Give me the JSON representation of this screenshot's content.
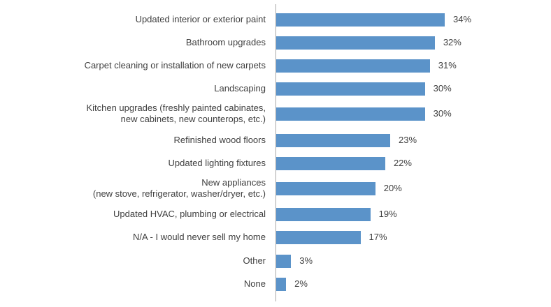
{
  "chart_data": {
    "type": "bar",
    "orientation": "horizontal",
    "categories": [
      "Updated interior or exterior paint",
      "Bathroom upgrades",
      "Carpet cleaning or installation of new carpets",
      "Landscaping",
      "Kitchen upgrades (freshly painted cabinates,\nnew cabinets, new counterops, etc.)",
      "Refinished wood floors",
      "Updated lighting fixtures",
      "New appliances\n(new stove, refrigerator, washer/dryer, etc.)",
      "Updated HVAC, plumbing or electrical",
      "N/A - I would never sell my home",
      "Other",
      "None"
    ],
    "values": [
      34,
      32,
      31,
      30,
      30,
      23,
      22,
      20,
      19,
      17,
      3,
      2
    ],
    "value_labels": [
      "34%",
      "32%",
      "31%",
      "30%",
      "30%",
      "23%",
      "22%",
      "20%",
      "19%",
      "17%",
      "3%",
      "2%"
    ],
    "xlim": [
      0,
      34
    ],
    "grid": false,
    "bar_color": "#5b93c9"
  }
}
